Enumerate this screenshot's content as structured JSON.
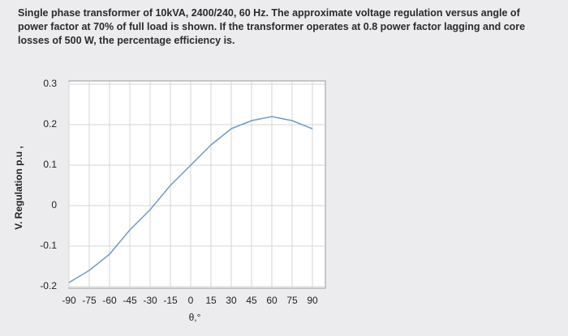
{
  "question": "Single phase transformer of 10kVA, 2400/240, 60 Hz. The approximate voltage regulation versus angle of power factor at 70% of full load is shown. If the transformer operates at 0.8 power factor lagging and core losses of 500 W, the percentage efficiency is.",
  "chart_data": {
    "type": "line",
    "xlabel": "θ,°",
    "ylabel": "V. Regulation p.u ,",
    "x": [
      -90,
      -75,
      -60,
      -45,
      -30,
      -15,
      0,
      15,
      30,
      45,
      60,
      75,
      90
    ],
    "series": [
      {
        "color": "#6f9cc6",
        "values": [
          -0.19,
          -0.16,
          -0.12,
          -0.06,
          -0.01,
          0.05,
          0.1,
          0.15,
          0.19,
          0.21,
          0.22,
          0.21,
          0.19
        ]
      }
    ],
    "xlim": [
      -90,
      90
    ],
    "ylim": [
      -0.2,
      0.3
    ],
    "xticks": [
      -90,
      -75,
      -60,
      -45,
      -30,
      -15,
      0,
      15,
      30,
      45,
      60,
      75,
      90
    ],
    "yticks": [
      -0.2,
      -0.1,
      0,
      0.1,
      0.2,
      0.3
    ],
    "grid": true
  }
}
